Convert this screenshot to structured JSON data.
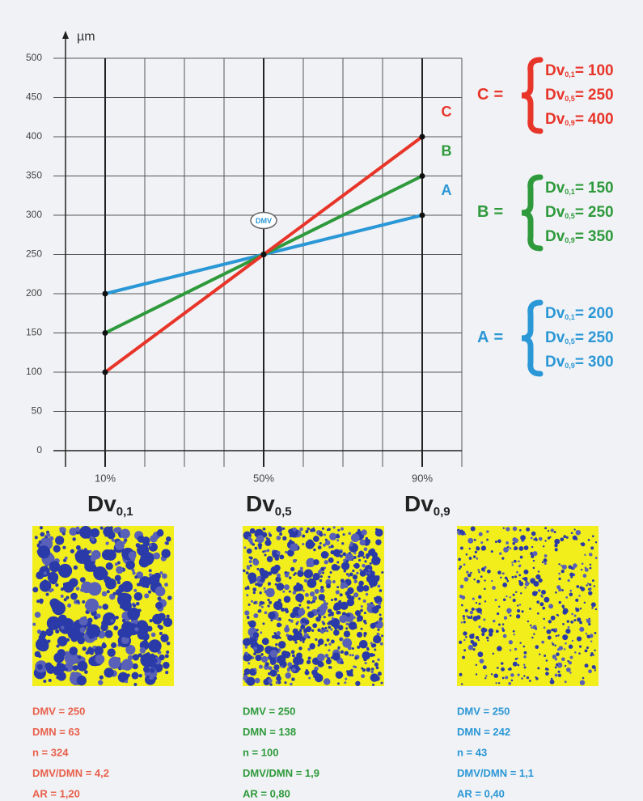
{
  "chart_data": {
    "type": "line",
    "y_label": "µm",
    "x": [
      10,
      50,
      90
    ],
    "xlim": [
      0,
      100
    ],
    "ylim": [
      0,
      500
    ],
    "xticks": [
      {
        "value": 10,
        "label": "10%"
      },
      {
        "value": 50,
        "label": "50%"
      },
      {
        "value": 90,
        "label": "90%"
      }
    ],
    "minor_xticks": [
      0,
      20,
      30,
      40,
      60,
      70,
      80,
      100
    ],
    "yticks": [
      0,
      50,
      100,
      150,
      200,
      250,
      300,
      350,
      400,
      450,
      500
    ],
    "grid": true,
    "dv_labels": [
      {
        "text": "Dv",
        "sub": "0,1"
      },
      {
        "text": "Dv",
        "sub": "0,5"
      },
      {
        "text": "Dv",
        "sub": "0,9"
      }
    ],
    "annotation": "DMV",
    "legend_sep": "=",
    "series": [
      {
        "name": "A",
        "color": "#2a97d6",
        "values": [
          200,
          250,
          300
        ]
      },
      {
        "name": "B",
        "color": "#2e9a3c",
        "values": [
          150,
          250,
          350
        ]
      },
      {
        "name": "C",
        "color": "#e8352a",
        "values": [
          100,
          250,
          400
        ]
      }
    ]
  },
  "samples": [
    {
      "color": "#e8604c",
      "stats": [
        "DMV = 250",
        "DMN = 63",
        "n = 324",
        "DMV/DMN = 4,2",
        "AR = 1,20"
      ]
    },
    {
      "color": "#2e9a3c",
      "stats": [
        "DMV = 250",
        "DMN = 138",
        "n = 100",
        "DMV/DMN = 1,9",
        "AR = 0,80"
      ]
    },
    {
      "color": "#2a97d6",
      "stats": [
        "DMV = 250",
        "DMN = 242",
        "n = 43",
        "DMV/DMN = 1,1",
        "AR = 0,40"
      ]
    }
  ]
}
